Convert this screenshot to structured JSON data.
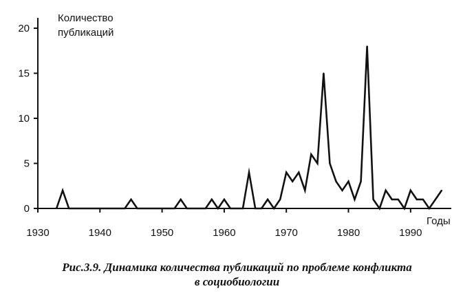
{
  "chart_data": {
    "type": "line",
    "ylabel": "Количество публикаций",
    "ylabel_lines": [
      "Количество",
      "публикаций"
    ],
    "xlabel": "Годы",
    "xlim": [
      1930,
      1996
    ],
    "ylim": [
      0,
      20
    ],
    "x_ticks": [
      1930,
      1940,
      1950,
      1960,
      1970,
      1980,
      1990
    ],
    "y_ticks": [
      0,
      5,
      10,
      15,
      20
    ],
    "grid": false,
    "series": [
      {
        "x": [
          1933,
          1934,
          1935,
          1944,
          1945,
          1946,
          1952,
          1953,
          1954,
          1957,
          1958,
          1959,
          1960,
          1961,
          1963,
          1964,
          1965,
          1966,
          1967,
          1968,
          1969,
          1970,
          1971,
          1972,
          1973,
          1974,
          1975,
          1976,
          1977,
          1978,
          1979,
          1980,
          1981,
          1982,
          1983,
          1984,
          1985,
          1986,
          1987,
          1988,
          1989,
          1990,
          1991,
          1992,
          1993,
          1995
        ],
        "values": [
          0,
          2,
          0,
          0,
          1,
          0,
          0,
          1,
          0,
          0,
          1,
          0,
          1,
          0,
          0,
          4,
          0,
          0,
          1,
          0,
          1,
          4,
          3,
          4,
          2,
          6,
          5,
          15,
          5,
          3,
          2,
          3,
          1,
          3,
          18,
          1,
          0,
          2,
          1,
          1,
          0,
          2,
          1,
          1,
          0,
          2
        ]
      }
    ]
  },
  "caption": {
    "line1": "Рис.3.9. Динамика количества публикаций по проблеме конфликта",
    "line2": "в социобиологии"
  }
}
